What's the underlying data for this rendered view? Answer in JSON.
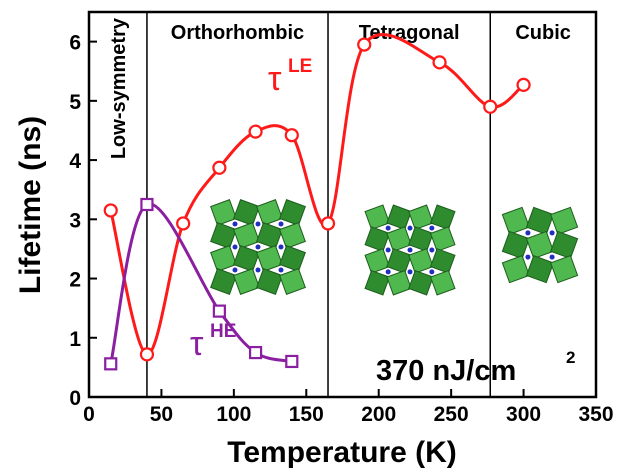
{
  "chart_data": {
    "type": "line",
    "x_label": "Temperature (K)",
    "y_label": "Lifetime (ns)",
    "xlim": [
      0,
      350
    ],
    "ylim": [
      0,
      6.5
    ],
    "xticks": [
      0,
      50,
      100,
      150,
      200,
      250,
      300,
      350
    ],
    "yticks": [
      0,
      1,
      2,
      3,
      4,
      5,
      6
    ],
    "phases": [
      "Low-symmetry",
      "Orthorhombic",
      "Tetragonal",
      "Cubic"
    ],
    "phase_boundaries": [
      40,
      165,
      277
    ],
    "series": [
      {
        "name": "τ",
        "name_sup": "LE",
        "color": "#ff1a1a",
        "marker": "circle",
        "x": [
          15,
          40,
          65,
          90,
          115,
          140,
          165,
          190,
          242,
          277,
          300
        ],
        "values": [
          3.15,
          0.72,
          2.93,
          3.87,
          4.48,
          4.42,
          2.93,
          5.95,
          5.65,
          4.9,
          5.27
        ]
      },
      {
        "name": "τ",
        "name_sup": "HE",
        "color": "#8a1fa0",
        "marker": "square",
        "x": [
          15,
          40,
          90,
          115,
          140
        ],
        "values": [
          0.56,
          3.25,
          1.45,
          0.75,
          0.6
        ]
      }
    ],
    "annotation": {
      "text": "370 nJ/cm",
      "sup": "2"
    }
  }
}
